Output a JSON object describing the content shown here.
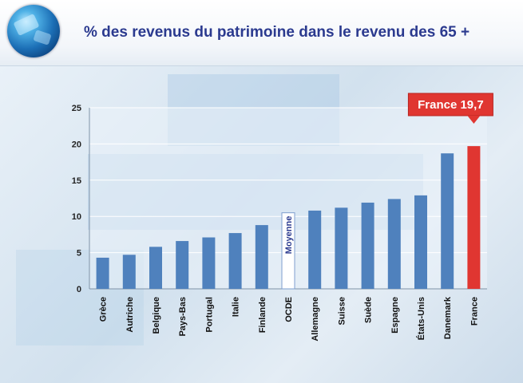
{
  "title": "% des revenus du patrimoine dans le revenu des 65 +",
  "colors": {
    "bar": "#4f81bd",
    "highlight": "#e03631",
    "average_fill": "#ffffff",
    "average_border": "#7f9fcf",
    "title": "#2b3a8f"
  },
  "chart_data": {
    "type": "bar",
    "title": "% des revenus du patrimoine dans le revenu des 65 +",
    "categories": [
      "Grèce",
      "Autriche",
      "Belgique",
      "Pays-Bas",
      "Portugal",
      "Italie",
      "Finlande",
      "OCDE",
      "Allemagne",
      "Suisse",
      "Suède",
      "Espagne",
      "États-Unis",
      "Danemark",
      "France"
    ],
    "values": [
      4.3,
      4.7,
      5.8,
      6.6,
      7.1,
      7.7,
      8.8,
      10.5,
      10.8,
      11.2,
      11.9,
      12.4,
      12.9,
      18.7,
      19.7
    ],
    "ylim": [
      0,
      25
    ],
    "yticks": [
      0,
      5,
      10,
      15,
      20,
      25
    ],
    "grid": true,
    "average_label": "Moyenne",
    "callout": "France 19,7"
  }
}
